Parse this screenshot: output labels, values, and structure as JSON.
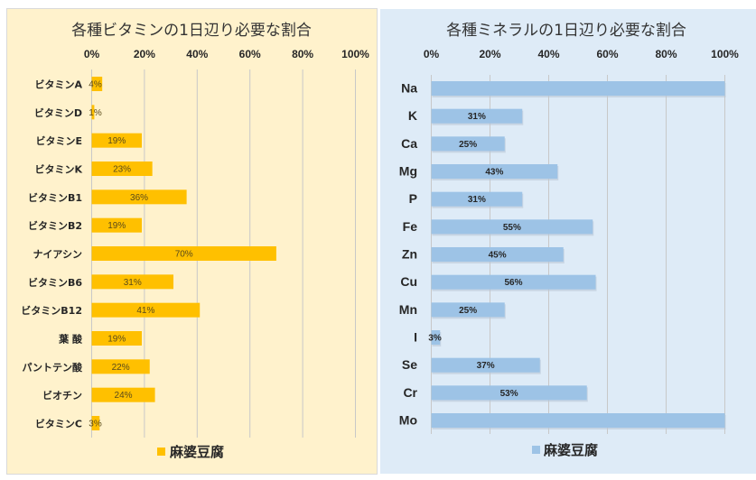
{
  "chart_data": [
    {
      "type": "bar",
      "orientation": "horizontal",
      "title": "各種ビタミンの1日辺り必要な割合",
      "categories": [
        "ビタミンA",
        "ビタミンD",
        "ビタミンE",
        "ビタミンK",
        "ビタミンB1",
        "ビタミンB2",
        "ナイアシン",
        "ビタミンB6",
        "ビタミンB12",
        "葉 酸",
        "パントテン酸",
        "ビオチン",
        "ビタミンC"
      ],
      "series": [
        {
          "name": "麻婆豆腐",
          "values": [
            4,
            1,
            19,
            23,
            36,
            19,
            70,
            31,
            41,
            19,
            22,
            24,
            3
          ],
          "labels": [
            "4%",
            "1%",
            "19%",
            "23%",
            "36%",
            "19%",
            "70%",
            "31%",
            "41%",
            "19%",
            "22%",
            "24%",
            "3%"
          ],
          "color": "#ffc000"
        }
      ],
      "xlim": [
        0,
        100
      ],
      "ticks": [
        "0%",
        "20%",
        "40%",
        "60%",
        "80%",
        "100%"
      ],
      "tick_values": [
        0,
        20,
        40,
        60,
        80,
        100
      ],
      "grid": true,
      "legend": "bottom",
      "background": "#fff2cc",
      "xlabel": "",
      "ylabel": ""
    },
    {
      "type": "bar",
      "orientation": "horizontal",
      "title": "各種ミネラルの1日辺り必要な割合",
      "categories": [
        "Na",
        "K",
        "Ca",
        "Mg",
        "P",
        "Fe",
        "Zn",
        "Cu",
        "Mn",
        "I",
        "Se",
        "Cr",
        "Mo"
      ],
      "series": [
        {
          "name": "麻婆豆腐",
          "values": [
            100,
            31,
            25,
            43,
            31,
            55,
            45,
            56,
            25,
            3,
            37,
            53,
            100
          ],
          "labels": [
            "",
            "31%",
            "25%",
            "43%",
            "31%",
            "55%",
            "45%",
            "56%",
            "25%",
            "3%",
            "37%",
            "53%",
            ""
          ],
          "color": "#9dc3e6"
        }
      ],
      "xlim": [
        0,
        100
      ],
      "ticks": [
        "0%",
        "20%",
        "40%",
        "60%",
        "80%",
        "100%"
      ],
      "tick_values": [
        0,
        20,
        40,
        60,
        80,
        100
      ],
      "grid": true,
      "legend": "bottom",
      "background": "#deebf7",
      "xlabel": "",
      "ylabel": ""
    }
  ]
}
